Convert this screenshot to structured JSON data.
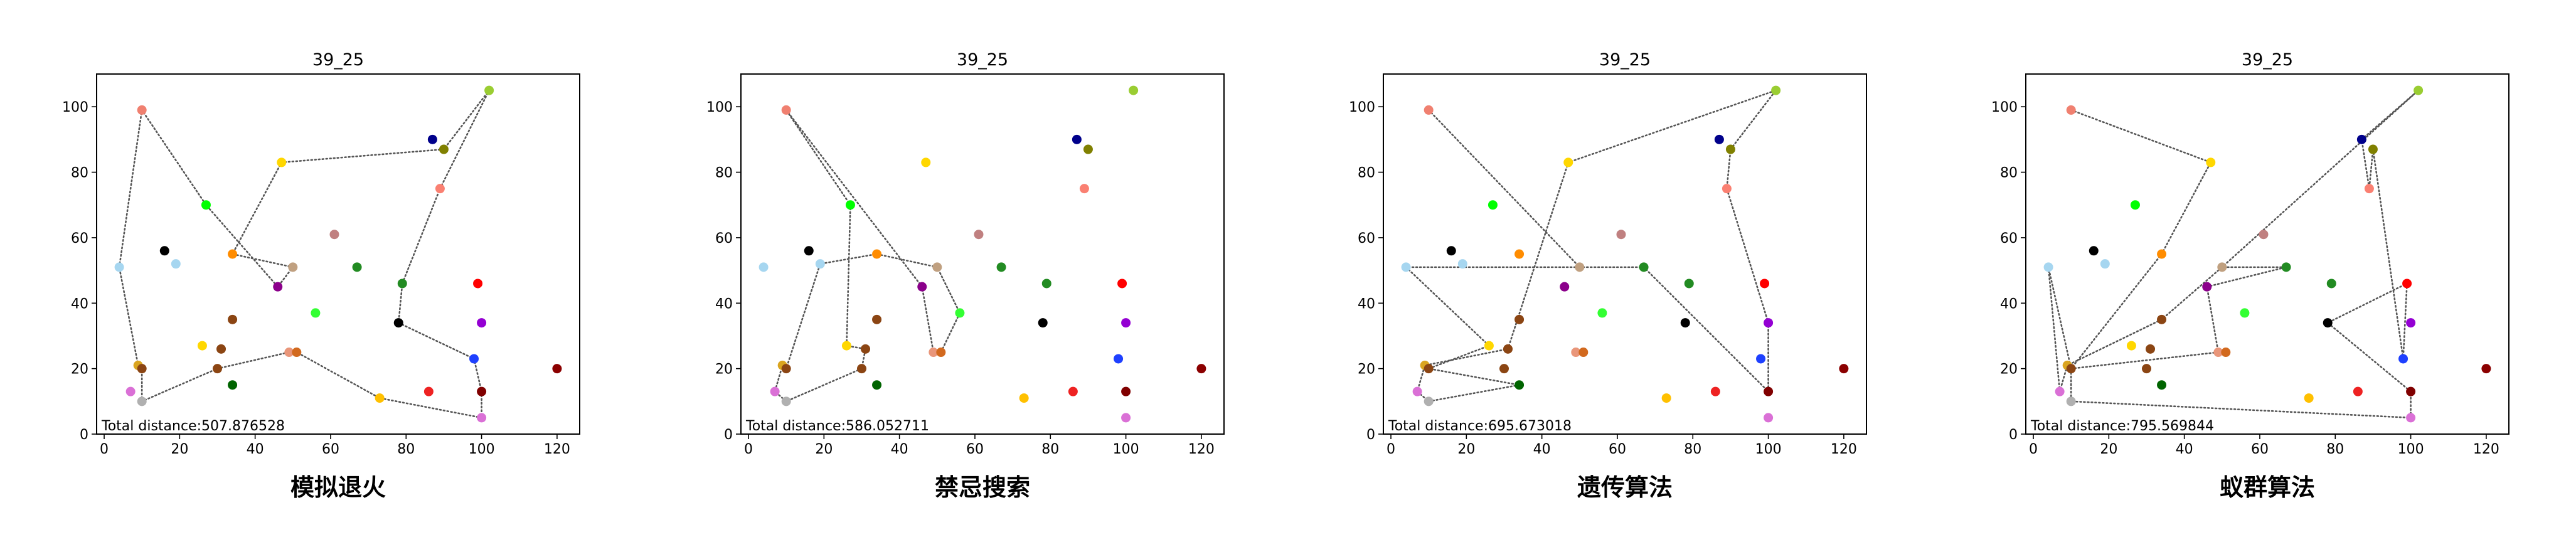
{
  "chart_data": {
    "type": "scatter",
    "cities": [
      {
        "x": 10,
        "y": 99,
        "color": "#f08070"
      },
      {
        "x": 102,
        "y": 105,
        "color": "#9acd32"
      },
      {
        "x": 87,
        "y": 90,
        "color": "#00008b"
      },
      {
        "x": 90,
        "y": 87,
        "color": "#808000"
      },
      {
        "x": 47,
        "y": 83,
        "color": "#ffd700"
      },
      {
        "x": 89,
        "y": 75,
        "color": "#fa8072"
      },
      {
        "x": 27,
        "y": 70,
        "color": "#00ff00"
      },
      {
        "x": 61,
        "y": 61,
        "color": "#c08080"
      },
      {
        "x": 16,
        "y": 56,
        "color": "#000000"
      },
      {
        "x": 34,
        "y": 55,
        "color": "#ff8c00"
      },
      {
        "x": 19,
        "y": 52,
        "color": "#a6d6f0"
      },
      {
        "x": 4,
        "y": 51,
        "color": "#a6d6f0"
      },
      {
        "x": 50,
        "y": 51,
        "color": "#c0a080"
      },
      {
        "x": 67,
        "y": 51,
        "color": "#228b22"
      },
      {
        "x": 99,
        "y": 46,
        "color": "#ff0000"
      },
      {
        "x": 79,
        "y": 46,
        "color": "#228b22"
      },
      {
        "x": 46,
        "y": 45,
        "color": "#8b008b"
      },
      {
        "x": 56,
        "y": 37,
        "color": "#33ff33"
      },
      {
        "x": 34,
        "y": 35,
        "color": "#8b4513"
      },
      {
        "x": 78,
        "y": 34,
        "color": "#000000"
      },
      {
        "x": 100,
        "y": 34,
        "color": "#9400d3"
      },
      {
        "x": 26,
        "y": 27,
        "color": "#ffd700"
      },
      {
        "x": 31,
        "y": 26,
        "color": "#8b4513"
      },
      {
        "x": 49,
        "y": 25,
        "color": "#e9967a"
      },
      {
        "x": 51,
        "y": 25,
        "color": "#d2691e"
      },
      {
        "x": 98,
        "y": 23,
        "color": "#1e40ff"
      },
      {
        "x": 9,
        "y": 21,
        "color": "#daa520"
      },
      {
        "x": 10,
        "y": 20,
        "color": "#8b4513"
      },
      {
        "x": 30,
        "y": 20,
        "color": "#8b4513"
      },
      {
        "x": 120,
        "y": 20,
        "color": "#8b0000"
      },
      {
        "x": 34,
        "y": 15,
        "color": "#006400"
      },
      {
        "x": 7,
        "y": 13,
        "color": "#da70d6"
      },
      {
        "x": 86,
        "y": 13,
        "color": "#ee2222"
      },
      {
        "x": 100,
        "y": 13,
        "color": "#800000"
      },
      {
        "x": 73,
        "y": 11,
        "color": "#ffc000"
      },
      {
        "x": 10,
        "y": 10,
        "color": "#b0b0b0"
      },
      {
        "x": 100,
        "y": 5,
        "color": "#da70d6"
      }
    ],
    "panels": [
      {
        "title": "39_25",
        "caption": "模拟退火",
        "distance_label": "Total distance:507.876528",
        "xlim": [
          -2,
          126
        ],
        "ylim": [
          0,
          110
        ],
        "xticks": [
          0,
          20,
          40,
          60,
          80,
          100,
          120
        ],
        "yticks": [
          0,
          20,
          40,
          60,
          80,
          100
        ],
        "route": [
          [
            4,
            51
          ],
          [
            10,
            99
          ],
          [
            27,
            70
          ],
          [
            46,
            45
          ],
          [
            50,
            51
          ],
          [
            34,
            55
          ],
          [
            47,
            83
          ],
          [
            90,
            87
          ],
          [
            102,
            105
          ],
          [
            89,
            75
          ],
          [
            79,
            46
          ],
          [
            78,
            34
          ],
          [
            98,
            23
          ],
          [
            100,
            13
          ],
          [
            100,
            5
          ],
          [
            73,
            11
          ],
          [
            51,
            25
          ],
          [
            49,
            25
          ],
          [
            30,
            20
          ],
          [
            10,
            10
          ],
          [
            10,
            20
          ],
          [
            9,
            21
          ],
          [
            4,
            51
          ]
        ]
      },
      {
        "title": "39_25",
        "caption": "禁忌搜索",
        "distance_label": "Total distance:586.052711",
        "xlim": [
          -2,
          126
        ],
        "ylim": [
          0,
          110
        ],
        "xticks": [
          0,
          20,
          40,
          60,
          80,
          100,
          120
        ],
        "yticks": [
          0,
          20,
          40,
          60,
          80,
          100
        ],
        "route": [
          [
            10,
            99
          ],
          [
            46,
            45
          ],
          [
            49,
            25
          ],
          [
            51,
            25
          ],
          [
            56,
            37
          ],
          [
            50,
            51
          ],
          [
            34,
            55
          ],
          [
            19,
            52
          ],
          [
            10,
            20
          ],
          [
            9,
            21
          ],
          [
            7,
            13
          ],
          [
            10,
            10
          ],
          [
            30,
            20
          ],
          [
            31,
            26
          ],
          [
            26,
            27
          ],
          [
            27,
            70
          ],
          [
            10,
            99
          ]
        ]
      },
      {
        "title": "39_25",
        "caption": "遗传算法",
        "distance_label": "Total distance:695.673018",
        "xlim": [
          -2,
          126
        ],
        "ylim": [
          0,
          110
        ],
        "xticks": [
          0,
          20,
          40,
          60,
          80,
          100,
          120
        ],
        "yticks": [
          0,
          20,
          40,
          60,
          80,
          100
        ],
        "route": [
          [
            10,
            99
          ],
          [
            50,
            51
          ],
          [
            4,
            51
          ],
          [
            26,
            27
          ],
          [
            10,
            20
          ],
          [
            34,
            15
          ],
          [
            10,
            10
          ],
          [
            7,
            13
          ],
          [
            9,
            21
          ],
          [
            31,
            26
          ],
          [
            47,
            83
          ],
          [
            102,
            105
          ],
          [
            90,
            87
          ],
          [
            89,
            75
          ],
          [
            100,
            34
          ],
          [
            100,
            13
          ],
          [
            67,
            51
          ],
          [
            50,
            51
          ]
        ]
      },
      {
        "title": "39_25",
        "caption": "蚁群算法",
        "distance_label": "Total distance:795.569844",
        "xlim": [
          -2,
          126
        ],
        "ylim": [
          0,
          110
        ],
        "xticks": [
          0,
          20,
          40,
          60,
          80,
          100,
          120
        ],
        "yticks": [
          0,
          20,
          40,
          60,
          80,
          100
        ],
        "route": [
          [
            10,
            99
          ],
          [
            47,
            83
          ],
          [
            34,
            55
          ],
          [
            10,
            20
          ],
          [
            49,
            25
          ],
          [
            46,
            45
          ],
          [
            67,
            51
          ],
          [
            50,
            51
          ],
          [
            34,
            35
          ],
          [
            9,
            21
          ],
          [
            7,
            13
          ],
          [
            4,
            51
          ],
          [
            10,
            20
          ],
          [
            10,
            10
          ],
          [
            100,
            5
          ],
          [
            100,
            13
          ],
          [
            78,
            34
          ],
          [
            99,
            46
          ],
          [
            98,
            23
          ],
          [
            90,
            87
          ],
          [
            89,
            75
          ],
          [
            87,
            90
          ],
          [
            102,
            105
          ],
          [
            50,
            51
          ]
        ]
      }
    ]
  }
}
